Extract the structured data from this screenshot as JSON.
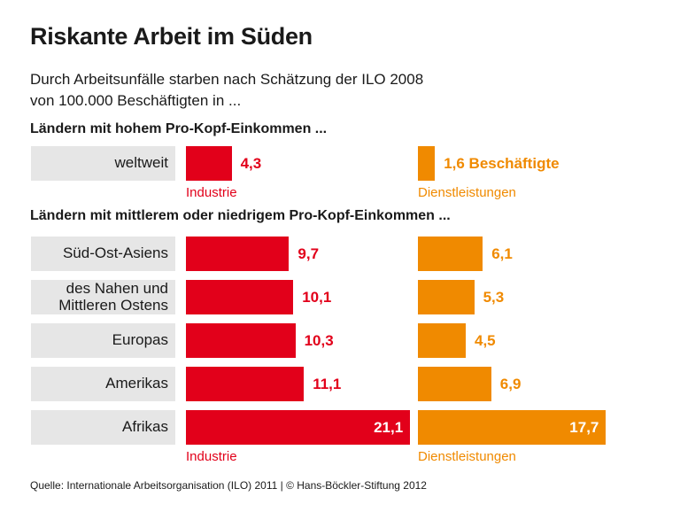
{
  "title": "Riskante Arbeit im Süden",
  "subtitle": [
    "Durch Arbeitsunfälle starben nach Schätzung der ILO 2008",
    "von 100.000 Beschäftigten in ..."
  ],
  "source": "Quelle: Internationale Arbeitsorganisation (ILO) 2011 | © Hans-Böckler-Stiftung 2012",
  "chart_data": [
    {
      "type": "bar",
      "orientation": "horizontal",
      "title": "Ländern mit hohem Pro-Kopf-Einkommen ...",
      "categories": [
        "weltweit"
      ],
      "series": [
        {
          "name": "Industrie",
          "color": "#e2001a",
          "values": [
            4.3
          ],
          "value_labels": [
            "4,3"
          ]
        },
        {
          "name": "Dienstleistungen",
          "color": "#f08a00",
          "values": [
            1.6
          ],
          "value_labels": [
            "1,6 Beschäftigte"
          ]
        }
      ]
    },
    {
      "type": "bar",
      "orientation": "horizontal",
      "title": "Ländern mit mittlerem oder niedrigem Pro-Kopf-Einkommen ...",
      "categories": [
        "Süd-Ost-Asiens",
        "des Nahen und\nMittleren Ostens",
        "Europas",
        "Amerikas",
        "Afrikas"
      ],
      "series": [
        {
          "name": "Industrie",
          "color": "#e2001a",
          "values": [
            9.7,
            10.1,
            10.3,
            11.1,
            21.1
          ],
          "value_labels": [
            "9,7",
            "10,1",
            "10,3",
            "11,1",
            "21,1"
          ]
        },
        {
          "name": "Dienstleistungen",
          "color": "#f08a00",
          "values": [
            6.1,
            5.3,
            4.5,
            6.9,
            17.7
          ],
          "value_labels": [
            "6,1",
            "5,3",
            "4,5",
            "6,9",
            "17,7"
          ]
        }
      ]
    }
  ]
}
